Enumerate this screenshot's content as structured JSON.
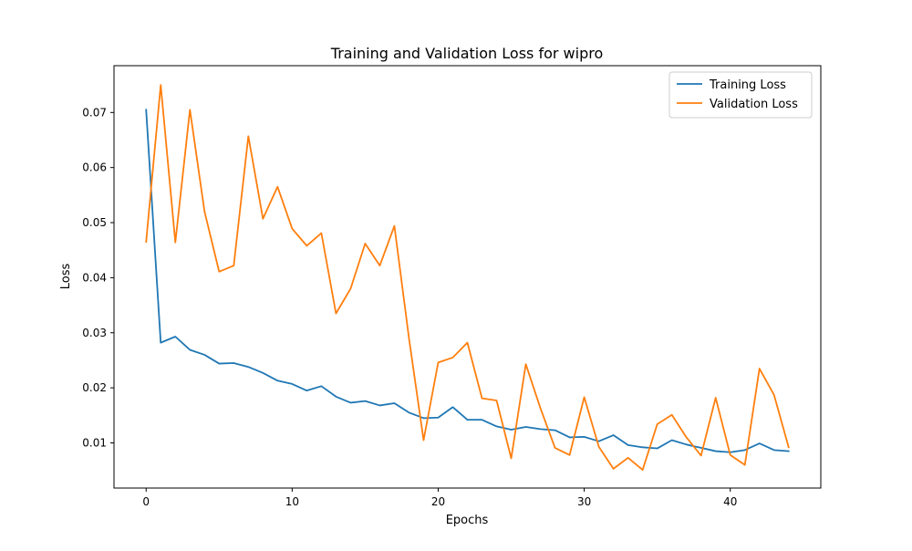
{
  "chart_data": {
    "type": "line",
    "title": "Training and Validation Loss for wipro",
    "xlabel": "Epochs",
    "ylabel": "Loss",
    "xlim": [
      -2.2,
      46.2
    ],
    "ylim": [
      0.0018,
      0.0785
    ],
    "xticks": [
      0,
      10,
      20,
      30,
      40
    ],
    "xtick_labels": [
      "0",
      "10",
      "20",
      "30",
      "40"
    ],
    "yticks": [
      0.01,
      0.02,
      0.03,
      0.04,
      0.05,
      0.06,
      0.07
    ],
    "ytick_labels": [
      "0.01",
      "0.02",
      "0.03",
      "0.04",
      "0.05",
      "0.06",
      "0.07"
    ],
    "grid": false,
    "legend_position": "top-right",
    "x": [
      0,
      1,
      2,
      3,
      4,
      5,
      6,
      7,
      8,
      9,
      10,
      11,
      12,
      13,
      14,
      15,
      16,
      17,
      18,
      19,
      20,
      21,
      22,
      23,
      24,
      25,
      26,
      27,
      28,
      29,
      30,
      31,
      32,
      33,
      34,
      35,
      36,
      37,
      38,
      39,
      40,
      41,
      42,
      43,
      44
    ],
    "series": [
      {
        "name": "Training Loss",
        "color": "#1f77b4",
        "values": [
          0.0705,
          0.0282,
          0.0293,
          0.0269,
          0.026,
          0.0244,
          0.0245,
          0.0238,
          0.0227,
          0.0213,
          0.0207,
          0.0195,
          0.0203,
          0.0184,
          0.0173,
          0.0176,
          0.0168,
          0.0172,
          0.0155,
          0.0145,
          0.0146,
          0.0165,
          0.0142,
          0.0142,
          0.013,
          0.0124,
          0.0129,
          0.0125,
          0.0123,
          0.011,
          0.0111,
          0.0103,
          0.0114,
          0.0096,
          0.0092,
          0.009,
          0.0105,
          0.0097,
          0.0091,
          0.0085,
          0.0083,
          0.0087,
          0.0099,
          0.0087,
          0.0085
        ]
      },
      {
        "name": "Validation Loss",
        "color": "#ff7f0e",
        "values": [
          0.0465,
          0.075,
          0.0464,
          0.0705,
          0.052,
          0.0411,
          0.0422,
          0.0657,
          0.0507,
          0.0565,
          0.0489,
          0.0458,
          0.0481,
          0.0335,
          0.038,
          0.0462,
          0.0422,
          0.0494,
          0.029,
          0.0105,
          0.0246,
          0.0255,
          0.0282,
          0.0181,
          0.0177,
          0.0072,
          0.0243,
          0.0163,
          0.0091,
          0.0078,
          0.0183,
          0.0093,
          0.0053,
          0.0073,
          0.0051,
          0.0134,
          0.0151,
          0.011,
          0.0077,
          0.0182,
          0.0078,
          0.006,
          0.0235,
          0.0187,
          0.0092
        ]
      }
    ]
  }
}
